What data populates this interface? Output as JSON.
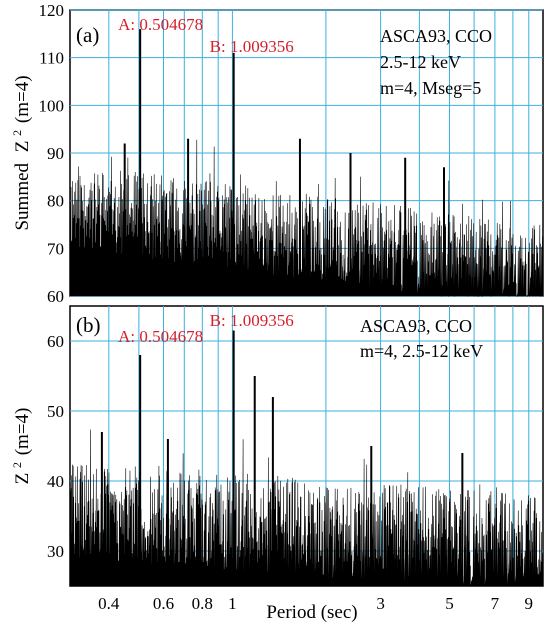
{
  "chart_data": [
    {
      "type": "line",
      "panel": "(a)",
      "title": "",
      "xlabel": "",
      "ylabel": "Summed",
      "ylabel_math": "Z",
      "ylabel_sup": "2",
      "ylabel_suffix": "(m=4)",
      "xscale": "log",
      "xlim": [
        0.3,
        10
      ],
      "ylim": [
        60,
        120
      ],
      "yticks": [
        60,
        70,
        80,
        90,
        100,
        110,
        120
      ],
      "xticks": [
        0.4,
        0.6,
        0.8,
        1,
        3,
        5,
        7,
        9
      ],
      "grid": true,
      "grid_color": "#3bb0e0",
      "line_color": "#000000",
      "baseline_start": 79,
      "baseline_end": 66,
      "noise_amp": 9,
      "seed": 11,
      "peaks": [
        {
          "x": 0.504678,
          "y": 116,
          "label": "A: 0.504678"
        },
        {
          "x": 1.009356,
          "y": 111,
          "label": "B: 1.009356"
        },
        {
          "x": 0.45,
          "y": 92
        },
        {
          "x": 0.72,
          "y": 93
        },
        {
          "x": 1.65,
          "y": 93
        },
        {
          "x": 2.4,
          "y": 90
        },
        {
          "x": 3.6,
          "y": 89
        },
        {
          "x": 4.8,
          "y": 87
        }
      ],
      "annotations": [
        "ASCA93, CCO",
        "2.5-12 keV",
        "m=4, Mseg=5"
      ],
      "peak_color": "#d4202c"
    },
    {
      "type": "line",
      "panel": "(b)",
      "title": "",
      "xlabel": "Period (sec)",
      "ylabel": "",
      "ylabel_math": "Z",
      "ylabel_sup": "2",
      "ylabel_suffix": "(m=4)",
      "xscale": "log",
      "xlim": [
        0.3,
        10
      ],
      "ylim": [
        25,
        65
      ],
      "yticks": [
        30,
        40,
        50,
        60
      ],
      "xticks": [
        0.4,
        0.6,
        0.8,
        1,
        3,
        5,
        7,
        9
      ],
      "grid": true,
      "grid_color": "#3bb0e0",
      "line_color": "#000000",
      "baseline_start": 36,
      "baseline_end": 31,
      "noise_amp": 7,
      "seed": 29,
      "peaks": [
        {
          "x": 0.504678,
          "y": 58,
          "label": "A: 0.504678"
        },
        {
          "x": 1.009356,
          "y": 61.5,
          "label": "B: 1.009356"
        },
        {
          "x": 1.18,
          "y": 55
        },
        {
          "x": 1.35,
          "y": 52
        },
        {
          "x": 0.62,
          "y": 46
        },
        {
          "x": 0.38,
          "y": 47
        },
        {
          "x": 2.8,
          "y": 45
        },
        {
          "x": 5.5,
          "y": 44
        }
      ],
      "annotations": [
        "ASCA93, CCO",
        "m=4,  2.5-12 keV"
      ],
      "peak_color": "#d4202c"
    }
  ]
}
